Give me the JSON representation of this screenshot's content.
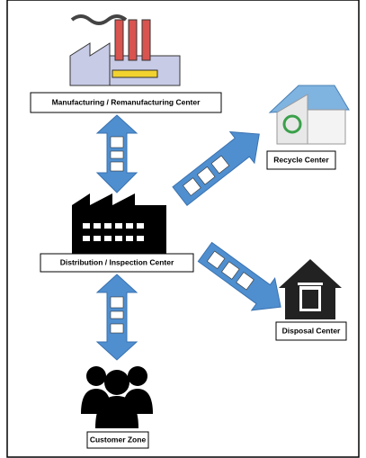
{
  "nodes": [
    {
      "label": "Manufacturing / Remanufacturing Center"
    },
    {
      "label": "Recycle Center"
    },
    {
      "label": "Distribution / Inspection Center"
    },
    {
      "label": "Disposal Center"
    },
    {
      "label": "Customer Zone"
    }
  ]
}
